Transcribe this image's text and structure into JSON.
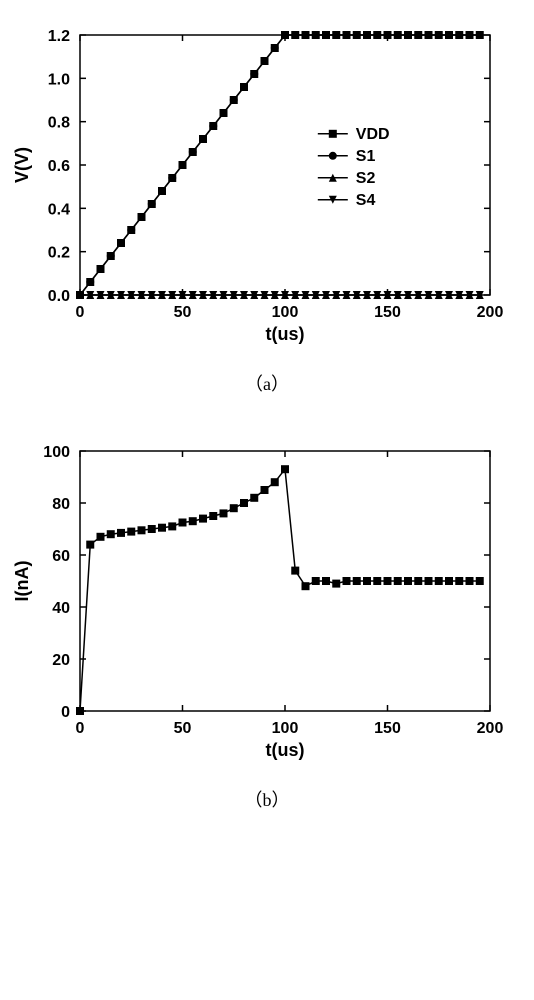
{
  "chartA": {
    "type": "line",
    "xlabel": "t(us)",
    "ylabel": "V(V)",
    "xlim": [
      0,
      200
    ],
    "ylim": [
      0,
      1.2
    ],
    "xticks": [
      0,
      50,
      100,
      150,
      200
    ],
    "yticks": [
      0.0,
      0.2,
      0.4,
      0.6,
      0.8,
      1.0,
      1.2
    ],
    "label_fontsize": 18,
    "tick_fontsize": 16,
    "background_color": "#ffffff",
    "axis_color": "#000000",
    "line_color": "#000000",
    "marker_size": 4,
    "legend": {
      "position": "right",
      "items": [
        {
          "label": "VDD",
          "marker": "square"
        },
        {
          "label": "S1",
          "marker": "circle"
        },
        {
          "label": "S2",
          "marker": "triangle-up"
        },
        {
          "label": "S4",
          "marker": "triangle-down"
        }
      ],
      "fontsize": 16
    },
    "series": [
      {
        "name": "VDD",
        "marker": "square",
        "x": [
          0,
          5,
          10,
          15,
          20,
          25,
          30,
          35,
          40,
          45,
          50,
          55,
          60,
          65,
          70,
          75,
          80,
          85,
          90,
          95,
          100,
          105,
          110,
          115,
          120,
          125,
          130,
          135,
          140,
          145,
          150,
          155,
          160,
          165,
          170,
          175,
          180,
          185,
          190,
          195
        ],
        "y": [
          0,
          0.06,
          0.12,
          0.18,
          0.24,
          0.3,
          0.36,
          0.42,
          0.48,
          0.54,
          0.6,
          0.66,
          0.72,
          0.78,
          0.84,
          0.9,
          0.96,
          1.02,
          1.08,
          1.14,
          1.2,
          1.2,
          1.2,
          1.2,
          1.2,
          1.2,
          1.2,
          1.2,
          1.2,
          1.2,
          1.2,
          1.2,
          1.2,
          1.2,
          1.2,
          1.2,
          1.2,
          1.2,
          1.2,
          1.2
        ]
      },
      {
        "name": "S1",
        "marker": "circle",
        "x": [
          0,
          5,
          10,
          15,
          20,
          25,
          30,
          35,
          40,
          45,
          50,
          55,
          60,
          65,
          70,
          75,
          80,
          85,
          90,
          95,
          100,
          105,
          110,
          115,
          120,
          125,
          130,
          135,
          140,
          145,
          150,
          155,
          160,
          165,
          170,
          175,
          180,
          185,
          190,
          195
        ],
        "y": [
          0,
          0.06,
          0.12,
          0.18,
          0.24,
          0.3,
          0.36,
          0.42,
          0.48,
          0.54,
          0.6,
          0.66,
          0.72,
          0.78,
          0.84,
          0.9,
          0.96,
          1.02,
          1.08,
          1.14,
          1.2,
          1.2,
          1.2,
          1.2,
          1.2,
          1.2,
          1.2,
          1.2,
          1.2,
          1.2,
          1.2,
          1.2,
          1.2,
          1.2,
          1.2,
          1.2,
          1.2,
          1.2,
          1.2,
          1.2
        ]
      },
      {
        "name": "S2",
        "marker": "triangle-up",
        "x": [
          0,
          5,
          10,
          15,
          20,
          25,
          30,
          35,
          40,
          45,
          50,
          55,
          60,
          65,
          70,
          75,
          80,
          85,
          90,
          95,
          100,
          105,
          110,
          115,
          120,
          125,
          130,
          135,
          140,
          145,
          150,
          155,
          160,
          165,
          170,
          175,
          180,
          185,
          190,
          195
        ],
        "y": [
          0,
          0,
          0,
          0,
          0,
          0,
          0,
          0,
          0,
          0,
          0,
          0,
          0,
          0,
          0,
          0,
          0,
          0,
          0,
          0,
          0,
          0,
          0,
          0,
          0,
          0,
          0,
          0,
          0,
          0,
          0,
          0,
          0,
          0,
          0,
          0,
          0,
          0,
          0,
          0
        ]
      },
      {
        "name": "S4",
        "marker": "triangle-down",
        "x": [
          0,
          5,
          10,
          15,
          20,
          25,
          30,
          35,
          40,
          45,
          50,
          55,
          60,
          65,
          70,
          75,
          80,
          85,
          90,
          95,
          100,
          105,
          110,
          115,
          120,
          125,
          130,
          135,
          140,
          145,
          150,
          155,
          160,
          165,
          170,
          175,
          180,
          185,
          190,
          195
        ],
        "y": [
          0,
          0,
          0,
          0,
          0,
          0,
          0,
          0,
          0,
          0,
          0,
          0,
          0,
          0,
          0,
          0,
          0,
          0,
          0,
          0,
          0,
          0,
          0,
          0,
          0,
          0,
          0,
          0,
          0,
          0,
          0,
          0,
          0,
          0,
          0,
          0,
          0,
          0,
          0,
          0
        ]
      }
    ],
    "caption": "（a）"
  },
  "chartB": {
    "type": "line",
    "xlabel": "t(us)",
    "ylabel": "I(nA)",
    "xlim": [
      0,
      200
    ],
    "ylim": [
      0,
      100
    ],
    "xticks": [
      0,
      50,
      100,
      150,
      200
    ],
    "yticks": [
      0,
      20,
      40,
      60,
      80,
      100
    ],
    "label_fontsize": 18,
    "tick_fontsize": 16,
    "background_color": "#ffffff",
    "axis_color": "#000000",
    "line_color": "#000000",
    "marker_size": 4,
    "series": [
      {
        "name": "I",
        "marker": "square",
        "x": [
          0,
          5,
          10,
          15,
          20,
          25,
          30,
          35,
          40,
          45,
          50,
          55,
          60,
          65,
          70,
          75,
          80,
          85,
          90,
          95,
          100,
          105,
          110,
          115,
          120,
          125,
          130,
          135,
          140,
          145,
          150,
          155,
          160,
          165,
          170,
          175,
          180,
          185,
          190,
          195
        ],
        "y": [
          0,
          64,
          67,
          68,
          68.5,
          69,
          69.5,
          70,
          70.5,
          71,
          72.5,
          73,
          74,
          75,
          76,
          78,
          80,
          82,
          85,
          88,
          93,
          54,
          48,
          50,
          50,
          49,
          50,
          50,
          50,
          50,
          50,
          50,
          50,
          50,
          50,
          50,
          50,
          50,
          50,
          50
        ]
      }
    ],
    "caption": "（b）"
  }
}
